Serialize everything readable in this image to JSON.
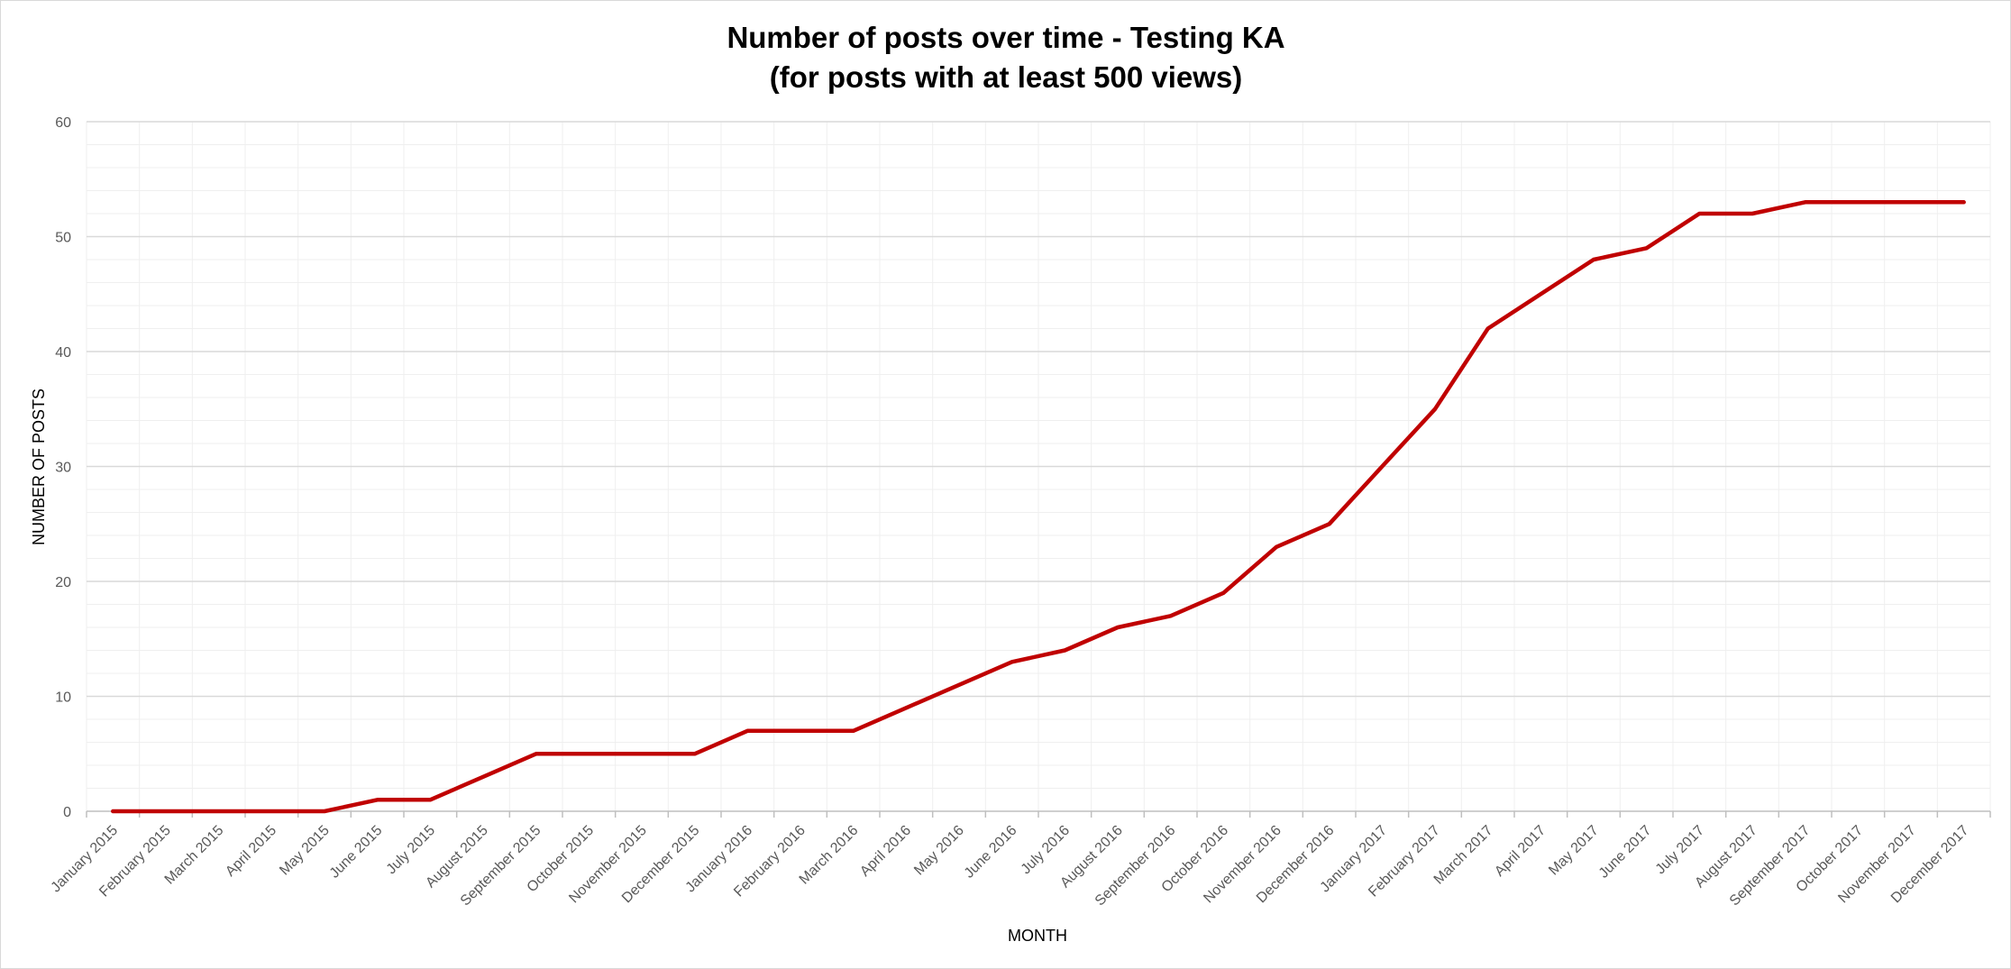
{
  "chart_data": {
    "type": "line",
    "title": [
      "Number of posts over time - Testing KA",
      "(for posts with at least 500 views)"
    ],
    "xlabel": "MONTH",
    "ylabel": "NUMBER OF POSTS",
    "ylim": [
      0,
      60
    ],
    "yticks": [
      0,
      10,
      20,
      30,
      40,
      50,
      60
    ],
    "grid": true,
    "legend": "none",
    "line_color": "#c00000",
    "categories": [
      "January 2015",
      "February 2015",
      "March 2015",
      "April 2015",
      "May 2015",
      "June 2015",
      "July 2015",
      "August 2015",
      "September 2015",
      "October 2015",
      "November 2015",
      "December 2015",
      "January 2016",
      "February 2016",
      "March 2016",
      "April 2016",
      "May 2016",
      "June 2016",
      "July 2016",
      "August 2016",
      "September 2016",
      "October 2016",
      "November 2016",
      "December 2016",
      "January 2017",
      "February 2017",
      "March 2017",
      "April 2017",
      "May 2017",
      "June 2017",
      "July 2017",
      "August 2017",
      "September 2017",
      "October 2017",
      "November 2017",
      "December 2017"
    ],
    "series": [
      {
        "values": [
          0,
          0,
          0,
          0,
          0,
          1,
          1,
          3,
          5,
          5,
          5,
          5,
          7,
          7,
          7,
          9,
          11,
          13,
          14,
          16,
          17,
          19,
          23,
          25,
          30,
          35,
          42,
          45,
          48,
          49,
          52,
          52,
          53,
          53,
          53,
          53
        ]
      }
    ]
  }
}
